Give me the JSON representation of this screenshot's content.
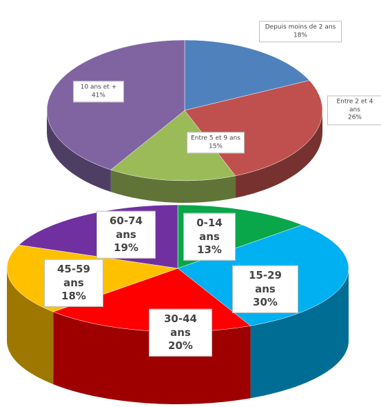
{
  "chart_data": [
    {
      "type": "pie",
      "categories": [
        "Depuis moins de 2 ans",
        "Entre 2 et 4 ans",
        "Entre 5 et 9 ans",
        "10 ans et +"
      ],
      "values": [
        18,
        26,
        15,
        41
      ],
      "value_labels": [
        "18%",
        "26%",
        "15%",
        "41%"
      ],
      "colors": [
        "#4f81bd",
        "#c0504d",
        "#9bbb59",
        "#8064a2"
      ]
    },
    {
      "type": "pie",
      "categories": [
        "0-14 ans",
        "15-29 ans",
        "30-44 ans",
        "45-59 ans",
        "60-74 ans"
      ],
      "values": [
        13,
        30,
        20,
        18,
        19
      ],
      "value_labels": [
        "13%",
        "30%",
        "20%",
        "18%",
        "19%"
      ],
      "colors": [
        "#0aa64a",
        "#00b0f0",
        "#ff0000",
        "#ffc000",
        "#7030a0"
      ]
    }
  ]
}
